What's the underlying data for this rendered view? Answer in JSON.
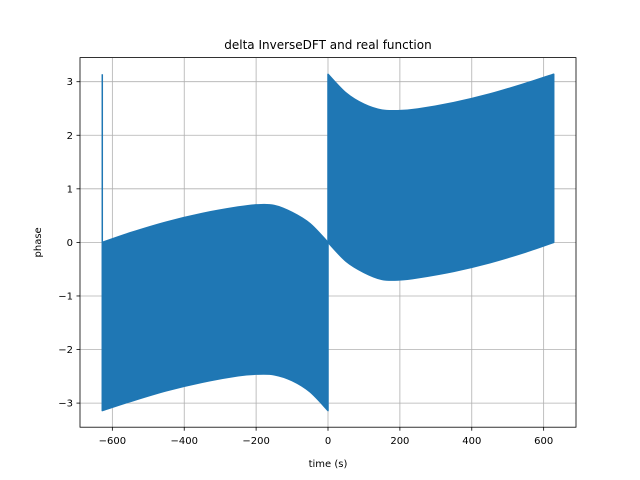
{
  "chart_data": {
    "type": "area",
    "title": "delta InverseDFT and real function",
    "xlabel": "time (s)",
    "ylabel": "phase",
    "xlim": [
      -690,
      690
    ],
    "ylim": [
      -3.45,
      3.45
    ],
    "xticks": [
      -600,
      -400,
      -200,
      0,
      200,
      400,
      600
    ],
    "yticks": [
      -3,
      -2,
      -1,
      0,
      1,
      2,
      3
    ],
    "xtick_labels": [
      "−600",
      "−400",
      "−200",
      "0",
      "200",
      "400",
      "600"
    ],
    "ytick_labels": [
      "−3",
      "−2",
      "−1",
      "0",
      "1",
      "2",
      "3"
    ],
    "grid": true,
    "series": [
      {
        "color": "#1f77b4",
        "spike": {
          "x": -628,
          "y_top": 3.14,
          "y_bottom": 0.0
        },
        "bands": [
          {
            "x": [
              -628,
              -550,
              -450,
              -350,
              -250,
              -200,
              -150,
              -100,
              -50,
              0
            ],
            "upper": [
              0.0,
              0.18,
              0.38,
              0.54,
              0.66,
              0.7,
              0.69,
              0.56,
              0.35,
              0.0
            ],
            "lower": [
              -3.14,
              -2.97,
              -2.77,
              -2.61,
              -2.49,
              -2.46,
              -2.47,
              -2.58,
              -2.79,
              -3.14
            ]
          },
          {
            "x": [
              0,
              50,
              100,
              150,
              200,
              250,
              350,
              450,
              550,
              628
            ],
            "upper": [
              3.14,
              2.79,
              2.58,
              2.47,
              2.46,
              2.49,
              2.61,
              2.77,
              2.97,
              3.14
            ],
            "lower": [
              0.0,
              -0.35,
              -0.56,
              -0.69,
              -0.7,
              -0.66,
              -0.54,
              -0.38,
              -0.18,
              0.0
            ]
          }
        ]
      }
    ]
  }
}
